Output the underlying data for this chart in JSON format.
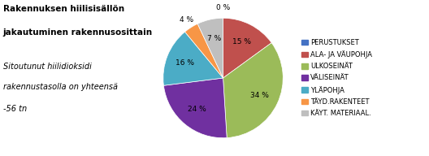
{
  "title_line1": "Rakennuksen hiilisisällön",
  "title_line2": "jakautuminen rakennusosittain",
  "subtitle_line1": "Sitoutunut hiilidioksidi",
  "subtitle_line2": "rakennustasolla on yhteensä",
  "subtitle_line3": "-56 tn",
  "legend_labels": [
    "PERUSTUKSET",
    "ALA- JA VÄUPOHJA",
    "ULKOSEINÄT",
    "VÄLISEINÄT",
    "YLÄPOHJA",
    "TÄYD.RAKENTEET",
    "KÄYT. MATERIAAL."
  ],
  "values": [
    0,
    15,
    34,
    24,
    16,
    4,
    7
  ],
  "colors": [
    "#4472c4",
    "#c0504d",
    "#9bbb59",
    "#7030a0",
    "#4bacc6",
    "#f79646",
    "#bfbfbf"
  ],
  "pct_labels": [
    "0 %",
    "15 %",
    "34 %",
    "24 %",
    "16 %",
    "4 %",
    "7 %"
  ],
  "startangle": 90,
  "figsize": [
    5.28,
    1.92
  ],
  "dpi": 100
}
